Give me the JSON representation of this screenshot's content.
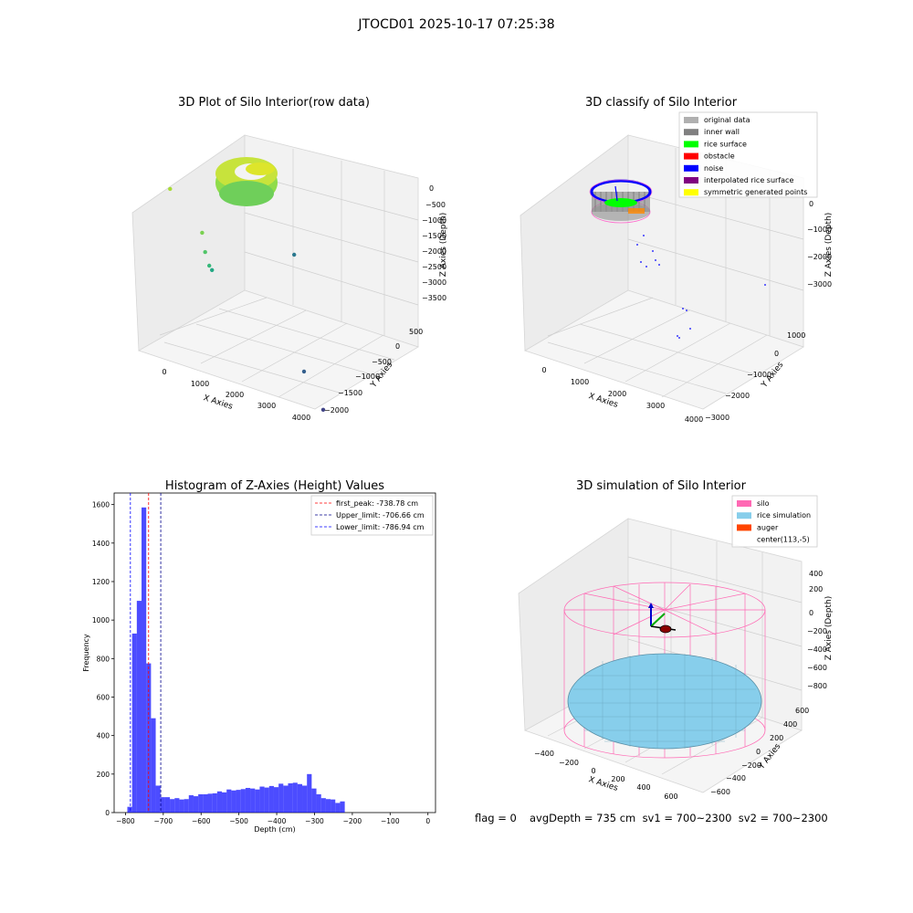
{
  "figure": {
    "suptitle": "JTOCD01 2025-10-17 07:25:38",
    "footer": {
      "flag": "flag = 0",
      "avg": "avgDepth = 735 cm  sv1 = 700~2300  sv2 = 700~2300"
    }
  },
  "chart_data": [
    {
      "id": "raw",
      "type": "scatter",
      "projection": "3d",
      "title": "3D Plot of Silo Interior(row data)",
      "xlabel": "X Axies",
      "ylabel": "Y Axies",
      "zlabel": "Z Axies (Depth)",
      "x_ticks": [
        "0",
        "1000",
        "2000",
        "3000",
        "4000"
      ],
      "y_ticks": [
        "500",
        "0",
        "−500",
        "−1000",
        "−1500",
        "−2000"
      ],
      "z_ticks": [
        "0",
        "−500",
        "−1000",
        "−1500",
        "−2000",
        "−2500",
        "−3000",
        "−3500"
      ],
      "colormap": "viridis",
      "points": [
        {
          "x": 150,
          "y": 0,
          "z": -750
        },
        {
          "x": 900,
          "y": -300,
          "z": -1350
        },
        {
          "x": 950,
          "y": -400,
          "z": -1700
        },
        {
          "x": 1000,
          "y": -600,
          "z": -1800
        },
        {
          "x": 1100,
          "y": -500,
          "z": -2000
        },
        {
          "x": 3500,
          "y": 400,
          "z": -2200
        },
        {
          "x": 3300,
          "y": -1200,
          "z": -3300
        },
        {
          "x": 3600,
          "y": -1900,
          "z": -3400
        }
      ]
    },
    {
      "id": "classify",
      "type": "scatter",
      "projection": "3d",
      "title": "3D classify of Silo Interior",
      "xlabel": "X Axies",
      "ylabel": "Y Axies",
      "zlabel": "Z Axies (Depth)",
      "x_ticks": [
        "0",
        "1000",
        "2000",
        "3000",
        "4000"
      ],
      "y_ticks": [
        "1000",
        "0",
        "−1000",
        "−2000",
        "−3000"
      ],
      "z_ticks": [
        "0",
        "−1000",
        "−2000",
        "−3000"
      ],
      "legend_position": "top-right",
      "legend": [
        {
          "label": "original data",
          "color": "#b0b0b0"
        },
        {
          "label": "inner wall",
          "color": "#808080"
        },
        {
          "label": "rice surface",
          "color": "#00ff00"
        },
        {
          "label": "obstacle",
          "color": "#ff0000"
        },
        {
          "label": "noise",
          "color": "#0000ff"
        },
        {
          "label": "interpolated rice surface",
          "color": "#800080"
        },
        {
          "label": "symmetric generated points",
          "color": "#ffff00"
        }
      ]
    },
    {
      "id": "hist",
      "type": "bar",
      "title": "Histogram of Z-Axies (Height) Values",
      "xlabel": "Depth (cm)",
      "ylabel": "Frequency",
      "xlim": [
        -830,
        20
      ],
      "ylim": [
        0,
        1660
      ],
      "x_ticks": [
        -800,
        -700,
        -600,
        -500,
        -400,
        -300,
        -200,
        -100,
        0
      ],
      "y_ticks": [
        0,
        200,
        400,
        600,
        800,
        1000,
        1200,
        1400,
        1600
      ],
      "bar_color": "#0000ff",
      "bin_start": -795,
      "bin_width": 12.5,
      "values": [
        30,
        930,
        1100,
        1585,
        775,
        490,
        140,
        80,
        80,
        70,
        75,
        68,
        70,
        90,
        85,
        95,
        95,
        98,
        100,
        110,
        105,
        120,
        115,
        118,
        122,
        128,
        125,
        120,
        135,
        130,
        138,
        132,
        150,
        140,
        152,
        155,
        148,
        140,
        200,
        125,
        95,
        75,
        70,
        68,
        50,
        58
      ],
      "vlines": [
        {
          "label": "first_peak: -738.78 cm",
          "x": -738.78,
          "color": "#ff0000"
        },
        {
          "label": "Upper_limit: -706.66 cm",
          "x": -706.66,
          "color": "#00008b"
        },
        {
          "label": "Lower_limit: -786.94 cm",
          "x": -786.94,
          "color": "#0000ff"
        }
      ],
      "legend_position": "top-right"
    },
    {
      "id": "sim",
      "type": "surface",
      "projection": "3d",
      "title": "3D simulation of Silo Interior",
      "xlabel": "X Axies",
      "ylabel": "Y Axies",
      "zlabel": "Z Axies (Depth)",
      "x_ticks": [
        "−400",
        "−200",
        "0",
        "200",
        "400",
        "600"
      ],
      "y_ticks": [
        "600",
        "400",
        "200",
        "0",
        "−200",
        "−400",
        "−600"
      ],
      "z_ticks": [
        "400",
        "200",
        "0",
        "−200",
        "−400",
        "−600",
        "−800"
      ],
      "legend_position": "top-right",
      "legend": [
        {
          "label": "silo",
          "color": "#ff69b4"
        },
        {
          "label": "rice simulation",
          "color": "#87ceeb"
        },
        {
          "label": "auger",
          "color": "#ff4500"
        },
        {
          "label": "center(113,-5)",
          "color": "none"
        }
      ]
    }
  ]
}
